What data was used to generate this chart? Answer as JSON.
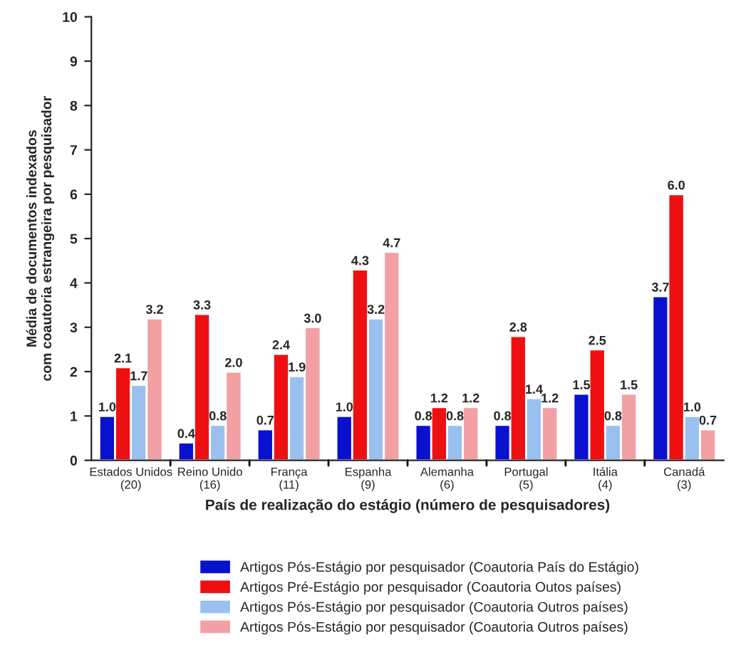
{
  "chart_data": {
    "type": "bar",
    "xlabel": "País de realização do estágio (número de pesquisadores)",
    "ylabel": "Média de documentos indexados\ncom coautoria estrangeira por pesquisador",
    "categories": [
      "Estados Unidos\n(20)",
      "Reino Unido\n(16)",
      "França\n(11)",
      "Espanha\n(9)",
      "Alemanha\n(6)",
      "Portugal\n(5)",
      "Itália\n(4)",
      "Canadá\n(3)"
    ],
    "series": [
      {
        "name": "Artigos Pós-Estágio por pesquisador (Coautoria País do Estágio)",
        "color": "#0a10d0",
        "values": [
          1.0,
          0.4,
          0.7,
          1.0,
          0.8,
          0.8,
          1.5,
          3.7
        ],
        "value_labels": [
          "1.0",
          "0.4",
          "0.7",
          "1.0",
          "0.8",
          "0.8",
          "1.5",
          "3.7"
        ]
      },
      {
        "name": "Artigos Pré-Estágio por pesquisador (Coautoria Outos países)",
        "color": "#ee1010",
        "values": [
          2.1,
          3.3,
          2.4,
          4.3,
          1.2,
          2.8,
          2.5,
          6.0
        ],
        "value_labels": [
          "2.1",
          "3.3",
          "2.4",
          "4.3",
          "1.2",
          "2.8",
          "2.5",
          "6.0"
        ]
      },
      {
        "name": "Artigos Pós-Estágio por pesquisador (Coautoria Outros países)",
        "color": "#99c0ee",
        "values": [
          1.7,
          0.8,
          1.9,
          3.2,
          0.8,
          1.4,
          0.8,
          1.0
        ],
        "value_labels": [
          "1.7",
          "0.8",
          "1.9",
          "3.2",
          "0.8",
          "1.4",
          "0.8",
          "1.0"
        ]
      },
      {
        "name": "Artigos Pós-Estágio por pesquisador (Coautoria Outros países)",
        "color": "#f2a0a4",
        "values": [
          3.2,
          2.0,
          3.0,
          4.7,
          1.2,
          1.2,
          1.5,
          0.7
        ],
        "value_labels": [
          "3.2",
          "2.0",
          "3.0",
          "4.7",
          "1.2",
          "1.2",
          "1.5",
          "0.7"
        ]
      }
    ],
    "ylim": [
      0,
      10
    ],
    "yticks": [
      0,
      1,
      2,
      3,
      4,
      5,
      6,
      7,
      8,
      9,
      10
    ],
    "grid": false,
    "legend": "bottom"
  }
}
